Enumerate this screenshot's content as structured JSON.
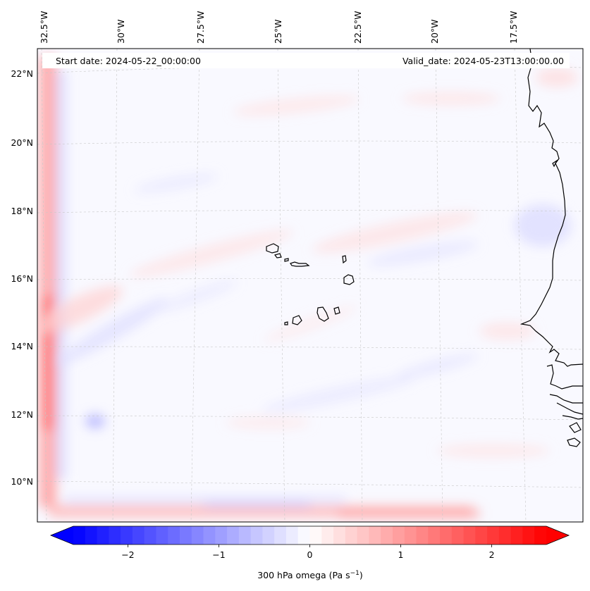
{
  "map": {
    "start_label": "Start date: 2024-05-22_00:00:00",
    "valid_label": "Valid_date: 2024-05-23T13:00:00.00",
    "lon_labels": [
      "32.5°W",
      "30°W",
      "27.5°W",
      "25°W",
      "22.5°W",
      "20°W",
      "17.5°W"
    ],
    "lat_labels": [
      "22°N",
      "20°N",
      "18°N",
      "16°N",
      "14°N",
      "12°N",
      "10°N"
    ],
    "coast_color": "#000000",
    "grid_color": "#c8c8c8"
  },
  "colorbar": {
    "title_main": "300 hPa omega (Pa s",
    "title_exp": "−1",
    "title_end": ")",
    "ticks": [
      "−2",
      "−1",
      "0",
      "1",
      "2"
    ],
    "vmin": -2.6,
    "vmax": 2.6,
    "low_color": "#0000ff",
    "mid_color": "#ffffff",
    "high_color": "#ff0000"
  }
}
